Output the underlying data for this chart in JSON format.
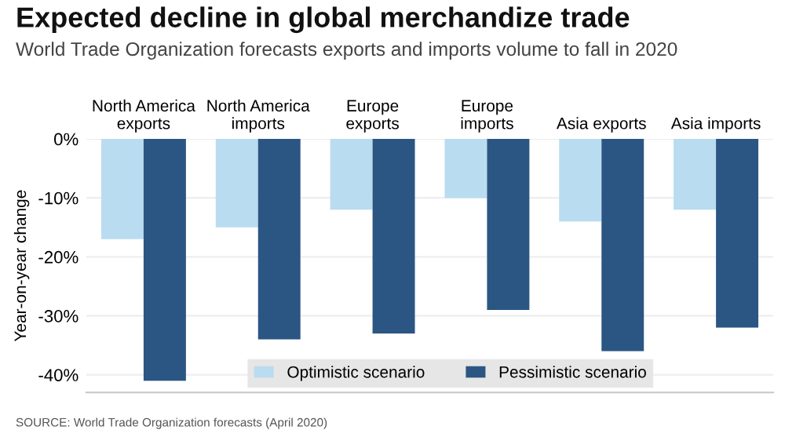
{
  "chart_data": {
    "type": "bar",
    "title": "Expected decline in global merchandize trade",
    "subtitle": "World Trade Organization forecasts exports and imports volume to fall in 2020",
    "ylabel": "Year-on-year change",
    "categories": [
      "North America\nexports",
      "North America\nimports",
      "Europe\nexports",
      "Europe\nimports",
      "Asia exports",
      "Asia imports"
    ],
    "series": [
      {
        "name": "Optimistic scenario",
        "color": "#b9dcf0",
        "values": [
          -17,
          -15,
          -12,
          -10,
          -14,
          -12
        ]
      },
      {
        "name": "Pessimistic scenario",
        "color": "#2b5683",
        "values": [
          -41,
          -34,
          -33,
          -29,
          -36,
          -32
        ]
      }
    ],
    "ylim": [
      -43,
      0
    ],
    "yticks": [
      {
        "value": 0,
        "label": "0%"
      },
      {
        "value": -10,
        "label": "-10%"
      },
      {
        "value": -20,
        "label": "-20%"
      },
      {
        "value": -30,
        "label": "-30%"
      },
      {
        "value": -40,
        "label": "-40%"
      }
    ],
    "grid": "y",
    "legend": "bottom",
    "annotations": [
      "SOURCE: World Trade Organization forecasts (April 2020)"
    ]
  }
}
